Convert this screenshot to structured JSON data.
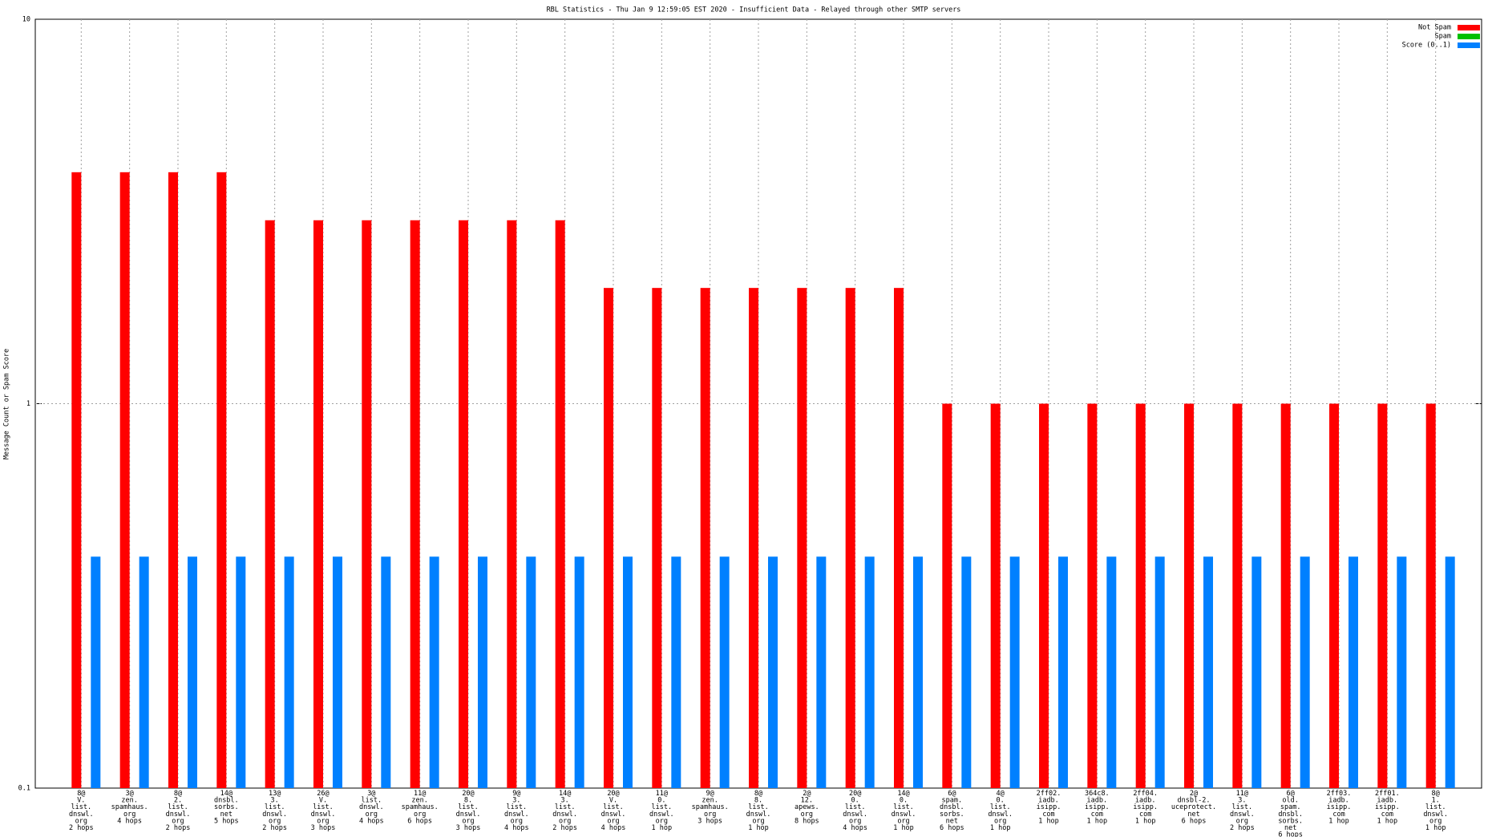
{
  "chart_data": {
    "type": "bar",
    "title": "RBL Statistics - Thu Jan  9 12:59:05 EST 2020 - Insufficient Data - Relayed through other SMTP servers",
    "y_label": "Message Count or Spam Score",
    "categories": [
      [
        "8@",
        "V.",
        "list.",
        "dnswl.",
        "org",
        "2 hops"
      ],
      [
        "3@",
        "zen.",
        "spamhaus.",
        "org",
        "4 hops"
      ],
      [
        "8@",
        "2.",
        "list.",
        "dnswl.",
        "org",
        "2 hops"
      ],
      [
        "14@",
        "dnsbl.",
        "sorbs.",
        "net",
        "5 hops"
      ],
      [
        "13@",
        "3.",
        "list.",
        "dnswl.",
        "org",
        "2 hops"
      ],
      [
        "26@",
        "V.",
        "list.",
        "dnswl.",
        "org",
        "3 hops"
      ],
      [
        "3@",
        "list.",
        "dnswl.",
        "org",
        "4 hops"
      ],
      [
        "11@",
        "zen.",
        "spamhaus.",
        "org",
        "6 hops"
      ],
      [
        "20@",
        "8.",
        "list.",
        "dnswl.",
        "org",
        "3 hops"
      ],
      [
        "9@",
        "3.",
        "list.",
        "dnswl.",
        "org",
        "4 hops"
      ],
      [
        "14@",
        "3.",
        "list.",
        "dnswl.",
        "org",
        "2 hops"
      ],
      [
        "20@",
        "V.",
        "list.",
        "dnswl.",
        "org",
        "4 hops"
      ],
      [
        "11@",
        "0.",
        "list.",
        "dnswl.",
        "org",
        "1 hop"
      ],
      [
        "9@",
        "zen.",
        "spamhaus.",
        "org",
        "3 hops"
      ],
      [
        "8@",
        "8.",
        "list.",
        "dnswl.",
        "org",
        "1 hop"
      ],
      [
        "2@",
        "12.",
        "apews.",
        "org",
        "8 hops"
      ],
      [
        "20@",
        "0.",
        "list.",
        "dnswl.",
        "org",
        "4 hops"
      ],
      [
        "14@",
        "0.",
        "list.",
        "dnswl.",
        "org",
        "1 hop"
      ],
      [
        "6@",
        "spam.",
        "dnsbl.",
        "sorbs.",
        "net",
        "6 hops"
      ],
      [
        "4@",
        "0.",
        "list.",
        "dnswl.",
        "org",
        "1 hop"
      ],
      [
        "2ff02.",
        "iadb.",
        "isipp.",
        "com",
        "1 hop"
      ],
      [
        "364c8.",
        "iadb.",
        "isipp.",
        "com",
        "1 hop"
      ],
      [
        "2ff04.",
        "iadb.",
        "isipp.",
        "com",
        "1 hop"
      ],
      [
        "2@",
        "dnsbl-2.",
        "uceprotect.",
        "net",
        "6 hops"
      ],
      [
        "11@",
        "3.",
        "list.",
        "dnswl.",
        "org",
        "2 hops"
      ],
      [
        "6@",
        "old.",
        "spam.",
        "dnsbl.",
        "sorbs.",
        "net",
        "6 hops"
      ],
      [
        "2ff03.",
        "iadb.",
        "isipp.",
        "com",
        "1 hop"
      ],
      [
        "2ff01.",
        "iadb.",
        "isipp.",
        "com",
        "1 hop"
      ],
      [
        "8@",
        "1.",
        "list.",
        "dnswl.",
        "org",
        "1 hop"
      ]
    ],
    "series": [
      {
        "name": "Not Spam",
        "color": "#ff0000",
        "values": [
          4,
          4,
          4,
          4,
          3,
          3,
          3,
          3,
          3,
          3,
          3,
          2,
          2,
          2,
          2,
          2,
          2,
          2,
          1,
          1,
          1,
          1,
          1,
          1,
          1,
          1,
          1,
          1,
          1
        ]
      },
      {
        "name": "Spam",
        "color": "#00c000",
        "values": [
          null,
          null,
          null,
          null,
          null,
          null,
          null,
          null,
          null,
          null,
          null,
          null,
          null,
          null,
          null,
          null,
          null,
          null,
          null,
          null,
          null,
          null,
          null,
          null,
          null,
          null,
          null,
          null,
          null
        ]
      },
      {
        "name": "Score (0..1)",
        "color": "#0080ff",
        "values": [
          0.4,
          0.4,
          0.4,
          0.4,
          0.4,
          0.4,
          0.4,
          0.4,
          0.4,
          0.4,
          0.4,
          0.4,
          0.4,
          0.4,
          0.4,
          0.4,
          0.4,
          0.4,
          0.4,
          0.4,
          0.4,
          0.4,
          0.4,
          0.4,
          0.4,
          0.4,
          0.4,
          0.4,
          0.4
        ]
      }
    ],
    "ylim": [
      0.1,
      10
    ],
    "yticks": [
      0.1,
      1,
      10
    ],
    "log_y": true,
    "grid": true,
    "legend": "top-right"
  }
}
